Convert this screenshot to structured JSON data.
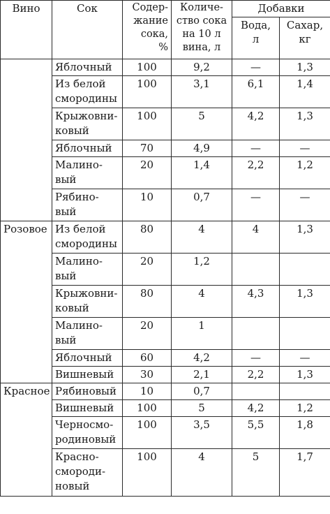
{
  "headers": {
    "wine": "Вино",
    "juice": "Сок",
    "content": [
      "Содер-",
      "жание",
      "сока,",
      "%"
    ],
    "amount": [
      "Количе-",
      "ство сока",
      "на 10 л",
      "вина, л"
    ],
    "additives": "Добавки",
    "water": [
      "Вода,",
      "л"
    ],
    "sugar": [
      "Сахар,",
      "кг"
    ]
  },
  "groups": [
    {
      "wine": "",
      "rows": [
        {
          "juice": [
            "Яблочный"
          ],
          "content": "100",
          "amount": "9,2",
          "water": "—",
          "sugar": "1,3"
        },
        {
          "juice": [
            "Из белой",
            "смородины"
          ],
          "content": "100",
          "amount": "3,1",
          "water": "6,1",
          "sugar": "1,4"
        },
        {
          "juice": [
            "Крыжовни-",
            "ковый"
          ],
          "content": "100",
          "amount": "5",
          "water": "4,2",
          "sugar": "1,3"
        },
        {
          "juice": [
            "Яблочный"
          ],
          "content": "70",
          "amount": "4,9",
          "water": "—",
          "sugar": "—"
        },
        {
          "juice": [
            "Малино-",
            "вый"
          ],
          "content": "20",
          "amount": "1,4",
          "water": "2,2",
          "sugar": "1,2"
        },
        {
          "juice": [
            "Рябино-",
            "вый"
          ],
          "content": "10",
          "amount": "0,7",
          "water": "—",
          "sugar": "—"
        }
      ]
    },
    {
      "wine": "Розовое",
      "rows": [
        {
          "juice": [
            "Из белой",
            "смородины"
          ],
          "content": "80",
          "amount": "4",
          "water": "4",
          "sugar": "1,3"
        },
        {
          "juice": [
            "Малино-",
            "вый"
          ],
          "content": "20",
          "amount": "1,2",
          "water": "",
          "sugar": ""
        },
        {
          "juice": [
            "Крыжовни-",
            "ковый"
          ],
          "content": "80",
          "amount": "4",
          "water": "4,3",
          "sugar": "1,3"
        },
        {
          "juice": [
            "Малино-",
            "вый"
          ],
          "content": "20",
          "amount": "1",
          "water": "",
          "sugar": ""
        },
        {
          "juice": [
            "Яблочный"
          ],
          "content": "60",
          "amount": "4,2",
          "water": "—",
          "sugar": "—"
        },
        {
          "juice": [
            "Вишневый"
          ],
          "content": "30",
          "amount": "2,1",
          "water": "2,2",
          "sugar": "1,3"
        }
      ]
    },
    {
      "wine": "Красное",
      "rows": [
        {
          "juice": [
            "Рябиновый"
          ],
          "content": "10",
          "amount": "0,7",
          "water": "",
          "sugar": ""
        },
        {
          "juice": [
            "Вишневый"
          ],
          "content": "100",
          "amount": "5",
          "water": "4,2",
          "sugar": "1,2"
        },
        {
          "juice": [
            "Черносмо-",
            "родиновый"
          ],
          "content": "100",
          "amount": "3,5",
          "water": "5,5",
          "sugar": "1,8"
        },
        {
          "juice": [
            "Красно-",
            "смороди-",
            "новый"
          ],
          "content": "100",
          "amount": "4",
          "water": "5",
          "sugar": "1,7"
        }
      ]
    }
  ]
}
